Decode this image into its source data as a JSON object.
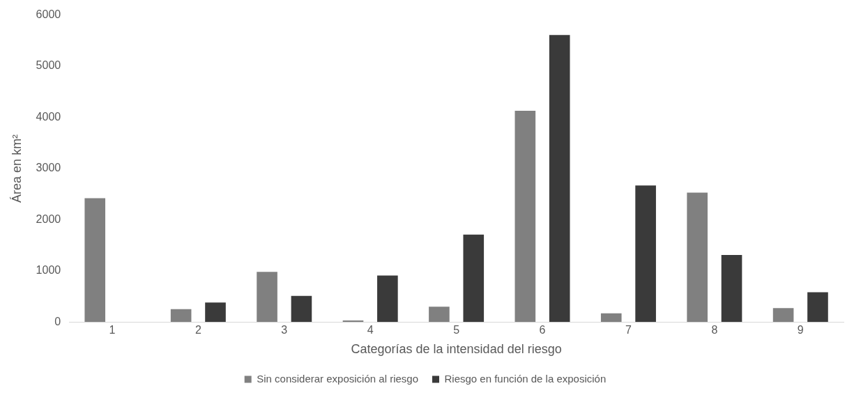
{
  "chart_data": {
    "type": "bar",
    "xlabel": "Categorías de la intensidad del riesgo",
    "ylabel": "Área en km²",
    "categories": [
      "1",
      "2",
      "3",
      "4",
      "5",
      "6",
      "7",
      "8",
      "9"
    ],
    "series": [
      {
        "name": "Sin considerar exposición al riesgo",
        "color": "#808080",
        "values": [
          2420,
          250,
          980,
          30,
          300,
          4130,
          170,
          2530,
          270
        ]
      },
      {
        "name": "Riesgo en función de la exposición",
        "color": "#3a3a3a",
        "values": [
          0,
          380,
          510,
          910,
          1710,
          5610,
          2670,
          1310,
          580
        ]
      }
    ],
    "ylim": [
      0,
      6000
    ],
    "yticks": [
      0,
      1000,
      2000,
      3000,
      4000,
      5000,
      6000
    ],
    "grid": false,
    "legend": "bottom"
  }
}
